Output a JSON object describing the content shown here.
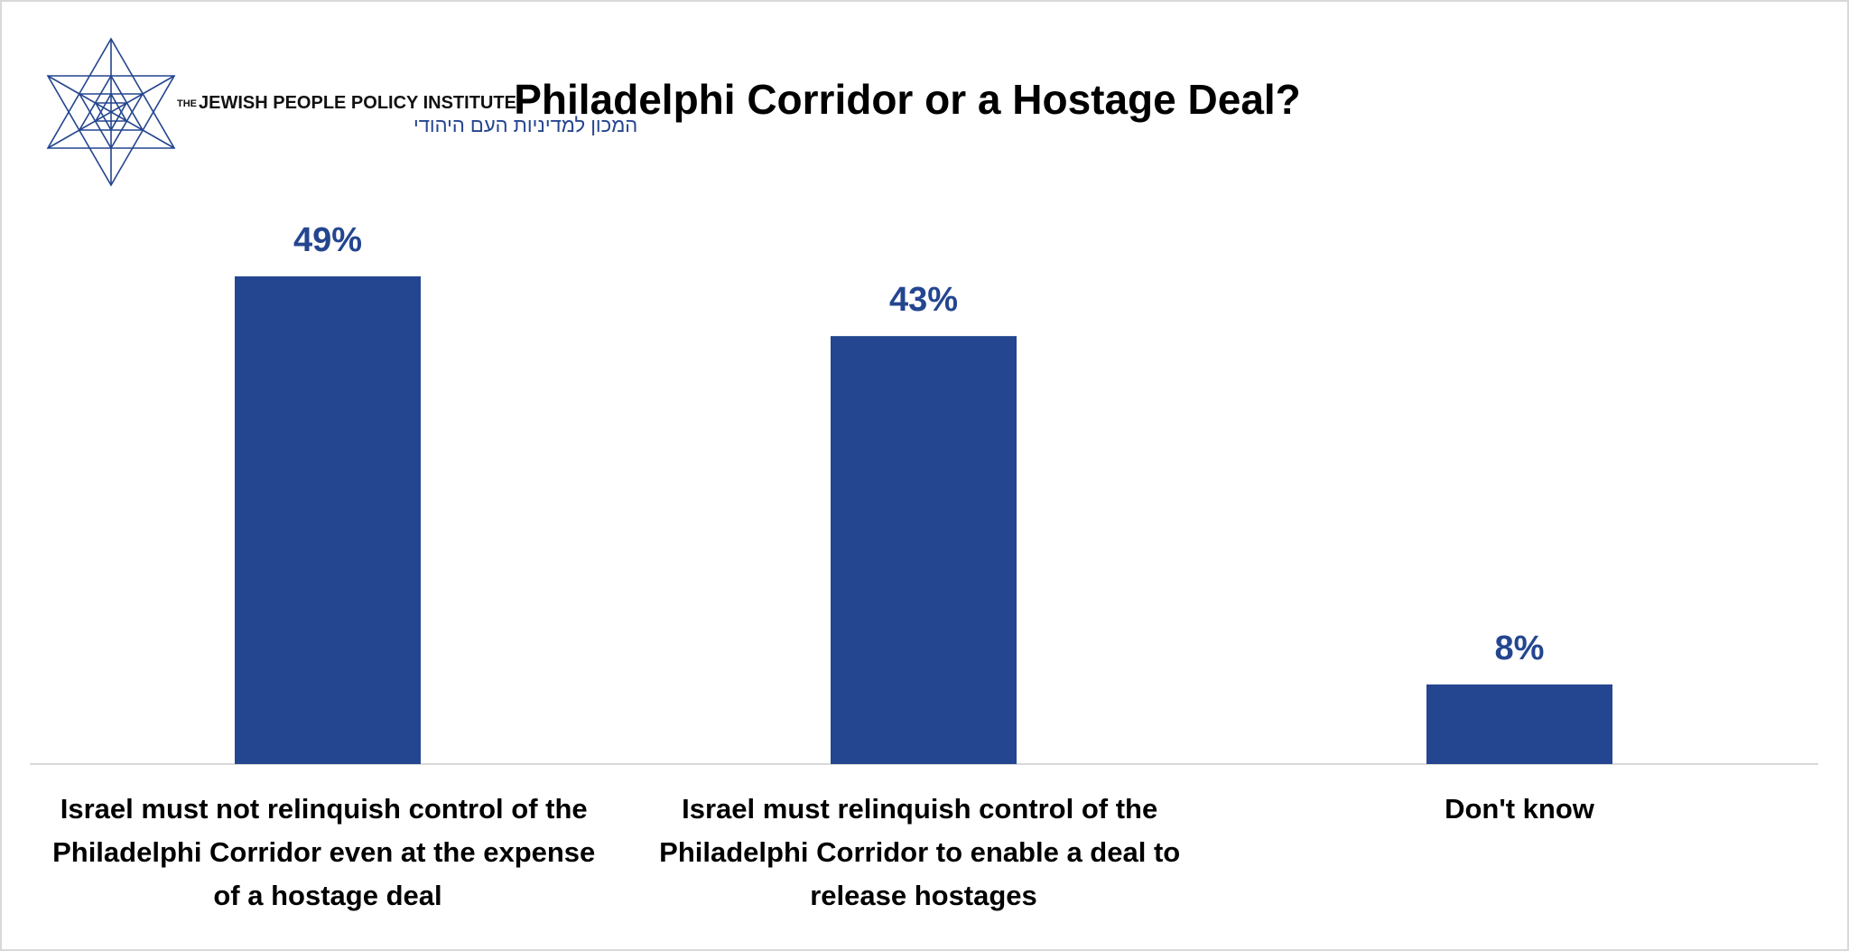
{
  "chart_data": {
    "type": "bar",
    "title": "Philadelphi Corridor or a Hostage Deal?",
    "logo": {
      "prefix": "THE",
      "name": "JEWISH PEOPLE POLICY INSTITUTE",
      "hebrew": "המכון למדיניות העם היהודי"
    },
    "categories": [
      "Israel must not relinquish control of the Philadelphi Corridor even at the expense of a hostage deal",
      "Israel must relinquish control of the Philadelphi Corridor to enable a deal to release hostages",
      "Don't know"
    ],
    "values": [
      49,
      43,
      8
    ],
    "value_labels": [
      "49%",
      "43%",
      "8%"
    ],
    "color": "#244690"
  }
}
